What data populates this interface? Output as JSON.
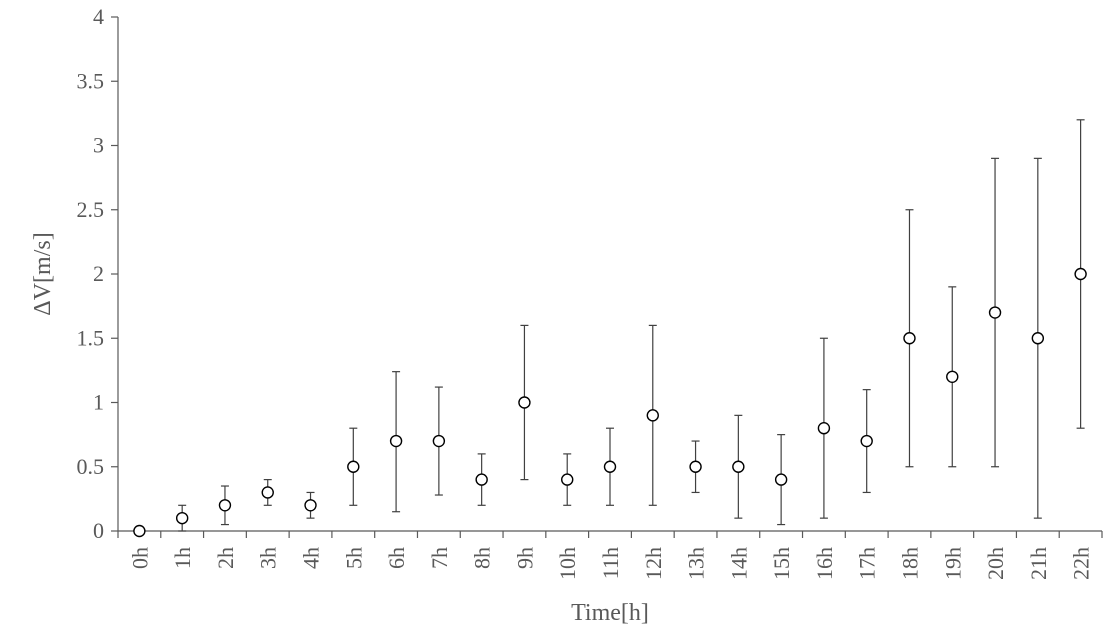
{
  "chart_data": {
    "type": "scatter",
    "title": "",
    "xlabel": "Time[h]",
    "ylabel": "ΔV[m/s]",
    "ylim": [
      0,
      4
    ],
    "y_ticks": [
      "0",
      "0.5",
      "1",
      "1.5",
      "2",
      "2.5",
      "3",
      "3.5",
      "4"
    ],
    "grid": false,
    "legend": "none",
    "categories": [
      "0h",
      "1h",
      "2h",
      "3h",
      "4h",
      "5h",
      "6h",
      "7h",
      "8h",
      "9h",
      "10h",
      "11h",
      "12h",
      "13h",
      "14h",
      "15h",
      "16h",
      "17h",
      "18h",
      "19h",
      "20h",
      "21h",
      "22h"
    ],
    "series": [
      {
        "values": [
          0,
          0.1,
          0.2,
          0.3,
          0.2,
          0.5,
          0.7,
          0.7,
          0.4,
          1.0,
          0.4,
          0.5,
          0.9,
          0.5,
          0.5,
          0.4,
          0.8,
          0.7,
          1.5,
          1.2,
          1.7,
          1.5,
          2.0
        ],
        "error_low": [
          0,
          0.0,
          0.05,
          0.2,
          0.1,
          0.2,
          0.15,
          0.28,
          0.2,
          0.4,
          0.2,
          0.2,
          0.2,
          0.3,
          0.1,
          0.05,
          0.1,
          0.3,
          0.5,
          0.5,
          0.5,
          0.1,
          0.8
        ],
        "error_high": [
          0,
          0.2,
          0.35,
          0.4,
          0.3,
          0.8,
          1.24,
          1.12,
          0.6,
          1.6,
          0.6,
          0.8,
          1.6,
          0.7,
          0.9,
          0.75,
          1.5,
          1.1,
          2.5,
          1.9,
          2.9,
          2.9,
          3.2
        ]
      }
    ],
    "colors": {
      "axis": "#595959",
      "marker_edge": "#000000",
      "error_bar": "#404040"
    }
  }
}
